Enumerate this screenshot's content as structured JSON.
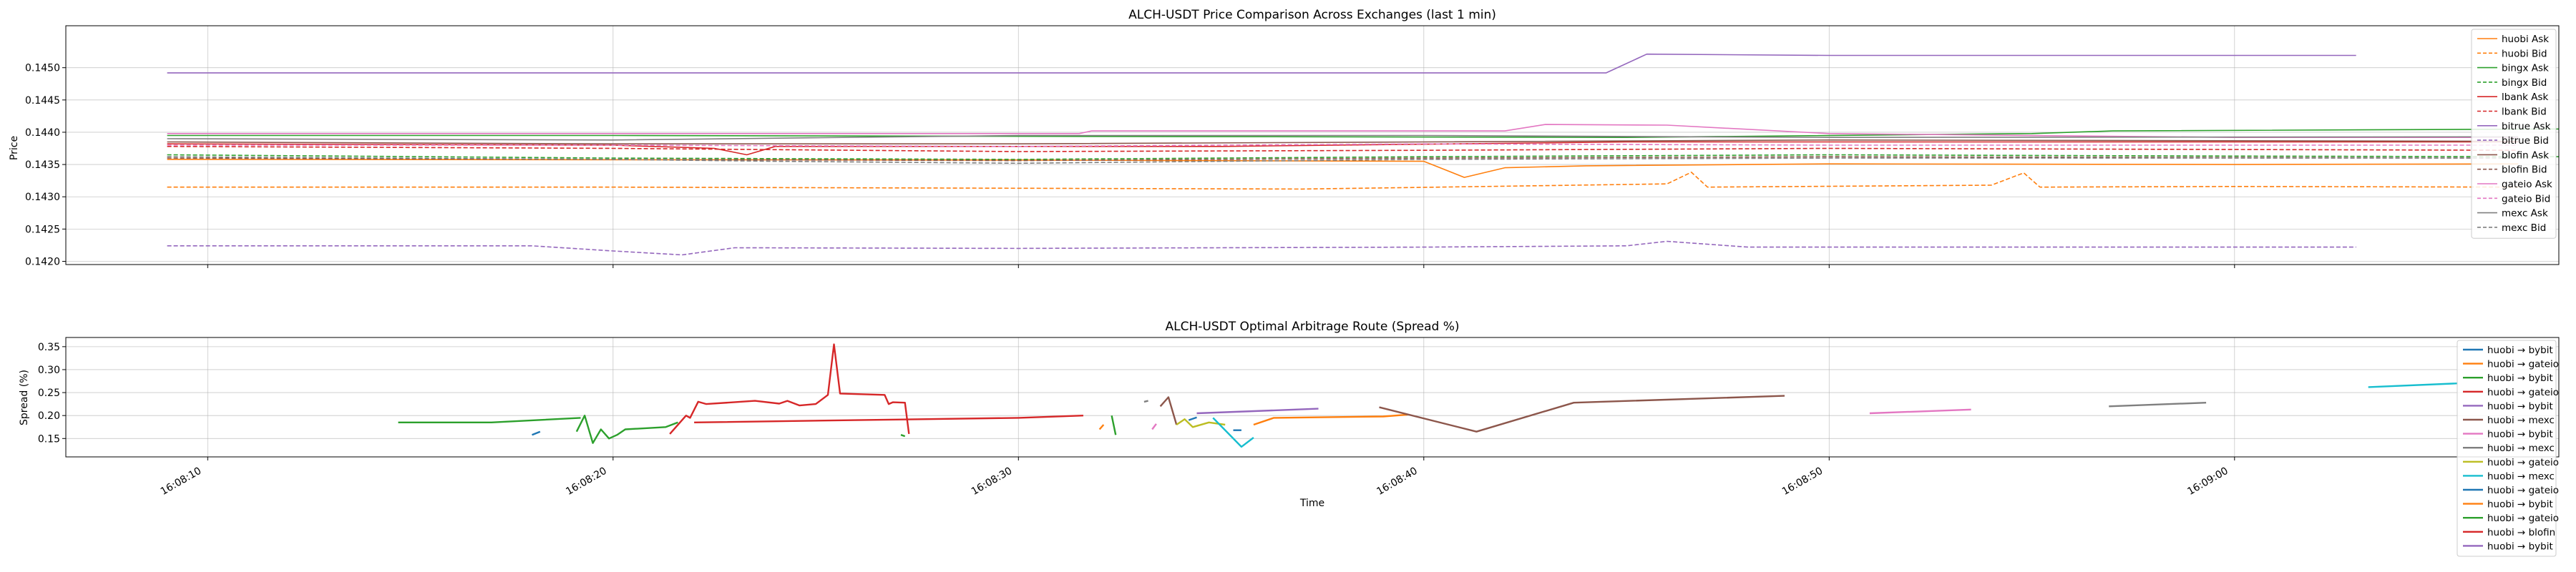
{
  "chart_data": [
    {
      "type": "line",
      "title": "ALCH-USDT Price Comparison Across Exchanges (last 1 min)",
      "xlabel": "",
      "ylabel": "Price",
      "ylim": [
        0.14195,
        0.14565
      ],
      "yticks": [
        "0.1420",
        "0.1425",
        "0.1430",
        "0.1435",
        "0.1440",
        "0.1445",
        "0.1450"
      ],
      "yticks_values": [
        0.142,
        0.1425,
        0.143,
        0.1435,
        0.144,
        0.1445,
        0.145
      ],
      "xlim_seconds": [
        6.5,
        68
      ],
      "grid": true,
      "legend_position": "right",
      "series": [
        {
          "name": "huobi Ask",
          "color": "#ff7f0e",
          "dash": false,
          "points": [
            [
              9,
              0.14358
            ],
            [
              30,
              0.14357
            ],
            [
              40,
              0.14355
            ],
            [
              41,
              0.1433
            ],
            [
              42,
              0.14345
            ],
            [
              44,
              0.14348
            ],
            [
              50,
              0.14351
            ],
            [
              60,
              0.1435
            ],
            [
              67,
              0.14351
            ]
          ]
        },
        {
          "name": "huobi Bid",
          "color": "#ff7f0e",
          "dash": true,
          "points": [
            [
              9,
              0.14315
            ],
            [
              20,
              0.14315
            ],
            [
              37,
              0.14312
            ],
            [
              46,
              0.1432
            ],
            [
              46.6,
              0.14338
            ],
            [
              47,
              0.14315
            ],
            [
              54,
              0.14318
            ],
            [
              54.8,
              0.14337
            ],
            [
              55.2,
              0.14315
            ],
            [
              60,
              0.14316
            ],
            [
              67,
              0.14315
            ]
          ]
        },
        {
          "name": "bingx Ask",
          "color": "#2ca02c",
          "dash": false,
          "points": [
            [
              9,
              0.14395
            ],
            [
              20,
              0.14395
            ],
            [
              45,
              0.14392
            ],
            [
              55,
              0.14398
            ],
            [
              57,
              0.14402
            ],
            [
              68,
              0.14405
            ]
          ]
        },
        {
          "name": "bingx Bid",
          "color": "#2ca02c",
          "dash": true,
          "points": [
            [
              9,
              0.14365
            ],
            [
              20,
              0.1436
            ],
            [
              30,
              0.14358
            ],
            [
              40,
              0.14362
            ],
            [
              50,
              0.14365
            ],
            [
              60,
              0.14363
            ],
            [
              68,
              0.14362
            ]
          ]
        },
        {
          "name": "lbank Ask",
          "color": "#d62728",
          "dash": false,
          "points": [
            [
              9,
              0.14382
            ],
            [
              20,
              0.1438
            ],
            [
              22.5,
              0.14375
            ],
            [
              23.3,
              0.14365
            ],
            [
              24,
              0.14378
            ],
            [
              35,
              0.14378
            ],
            [
              45,
              0.14385
            ],
            [
              60,
              0.14385
            ],
            [
              67,
              0.14385
            ]
          ]
        },
        {
          "name": "lbank Bid",
          "color": "#d62728",
          "dash": true,
          "points": [
            [
              9,
              0.14378
            ],
            [
              20,
              0.14375
            ],
            [
              30,
              0.1437
            ],
            [
              40,
              0.14372
            ],
            [
              50,
              0.14375
            ],
            [
              67,
              0.14372
            ]
          ]
        },
        {
          "name": "bitrue Ask",
          "color": "#9467bd",
          "dash": false,
          "points": [
            [
              9,
              0.14492
            ],
            [
              29,
              0.14492
            ],
            [
              42,
              0.14492
            ],
            [
              44.5,
              0.14492
            ],
            [
              45.5,
              0.14521
            ],
            [
              50,
              0.14519
            ],
            [
              63,
              0.14519
            ]
          ]
        },
        {
          "name": "bitrue Bid",
          "color": "#9467bd",
          "dash": true,
          "points": [
            [
              9,
              0.14224
            ],
            [
              18,
              0.14224
            ],
            [
              20,
              0.14216
            ],
            [
              21.7,
              0.1421
            ],
            [
              23,
              0.14221
            ],
            [
              30,
              0.1422
            ],
            [
              40,
              0.14222
            ],
            [
              45,
              0.14224
            ],
            [
              46,
              0.14231
            ],
            [
              48,
              0.14222
            ],
            [
              63,
              0.14222
            ]
          ]
        },
        {
          "name": "blofin Ask",
          "color": "#8c564b",
          "dash": false,
          "points": [
            [
              9,
              0.14385
            ],
            [
              20,
              0.14382
            ],
            [
              30,
              0.14382
            ],
            [
              40,
              0.14385
            ],
            [
              50,
              0.14388
            ],
            [
              67,
              0.14386
            ]
          ]
        },
        {
          "name": "blofin Bid",
          "color": "#8c564b",
          "dash": true,
          "points": [
            [
              9,
              0.1436
            ],
            [
              20,
              0.14358
            ],
            [
              30,
              0.14356
            ],
            [
              40,
              0.1436
            ],
            [
              50,
              0.14362
            ],
            [
              67,
              0.1436
            ]
          ]
        },
        {
          "name": "gateio Ask",
          "color": "#e377c2",
          "dash": false,
          "points": [
            [
              9,
              0.14398
            ],
            [
              20,
              0.14398
            ],
            [
              31.5,
              0.14398
            ],
            [
              31.8,
              0.14402
            ],
            [
              38,
              0.14402
            ],
            [
              42,
              0.14402
            ],
            [
              43,
              0.14412
            ],
            [
              46,
              0.14411
            ],
            [
              50,
              0.14398
            ],
            [
              60,
              0.14392
            ],
            [
              67,
              0.14392
            ]
          ]
        },
        {
          "name": "gateio Bid",
          "color": "#e377c2",
          "dash": true,
          "points": [
            [
              9,
              0.1438
            ],
            [
              20,
              0.1438
            ],
            [
              30,
              0.14378
            ],
            [
              40,
              0.14382
            ],
            [
              50,
              0.1438
            ],
            [
              67,
              0.1438
            ]
          ]
        },
        {
          "name": "mexc Ask",
          "color": "#7f7f7f",
          "dash": false,
          "points": [
            [
              9,
              0.1439
            ],
            [
              20,
              0.14388
            ],
            [
              30,
              0.14395
            ],
            [
              33,
              0.14395
            ],
            [
              40,
              0.14395
            ],
            [
              50,
              0.14392
            ],
            [
              67,
              0.14393
            ]
          ]
        },
        {
          "name": "mexc Bid",
          "color": "#7f7f7f",
          "dash": true,
          "points": [
            [
              9,
              0.14362
            ],
            [
              20,
              0.14358
            ],
            [
              24,
              0.14355
            ],
            [
              30,
              0.14352
            ],
            [
              40,
              0.14358
            ],
            [
              50,
              0.1436
            ],
            [
              67,
              0.1436
            ]
          ]
        }
      ]
    },
    {
      "type": "line",
      "title": "ALCH-USDT Optimal Arbitrage Route (Spread %)",
      "xlabel": "Time",
      "ylabel": "Spread (%)",
      "ylim": [
        0.11,
        0.37
      ],
      "yticks": [
        "0.15",
        "0.20",
        "0.25",
        "0.30",
        "0.35"
      ],
      "yticks_values": [
        0.15,
        0.2,
        0.25,
        0.3,
        0.35
      ],
      "xticks": [
        "16:08:10",
        "16:08:20",
        "16:08:30",
        "16:08:40",
        "16:08:50",
        "16:09:00"
      ],
      "xticks_seconds": [
        10,
        20,
        30,
        40,
        50,
        60
      ],
      "grid": true,
      "legend_position": "right",
      "legend": [
        {
          "name": "huobi → bybit",
          "color": "#1f77b4"
        },
        {
          "name": "huobi → gateio",
          "color": "#ff7f0e"
        },
        {
          "name": "huobi → bybit",
          "color": "#2ca02c"
        },
        {
          "name": "huobi → gateio",
          "color": "#d62728"
        },
        {
          "name": "huobi → bybit",
          "color": "#9467bd"
        },
        {
          "name": "huobi → mexc",
          "color": "#8c564b"
        },
        {
          "name": "huobi → bybit",
          "color": "#e377c2"
        },
        {
          "name": "huobi → mexc",
          "color": "#7f7f7f"
        },
        {
          "name": "huobi → gateio",
          "color": "#bcbd22"
        },
        {
          "name": "huobi → mexc",
          "color": "#17becf"
        },
        {
          "name": "huobi → gateio",
          "color": "#1f77b4"
        },
        {
          "name": "huobi → bybit",
          "color": "#ff7f0e"
        },
        {
          "name": "huobi → gateio",
          "color": "#2ca02c"
        },
        {
          "name": "huobi → blofin",
          "color": "#d62728"
        },
        {
          "name": "huobi → bybit",
          "color": "#9467bd"
        }
      ],
      "segments": [
        {
          "color": "#2ca02c",
          "points": [
            [
              14.7,
              0.185
            ],
            [
              17,
              0.185
            ],
            [
              19.2,
              0.195
            ]
          ]
        },
        {
          "color": "#1f77b4",
          "points": [
            [
              18,
              0.158
            ],
            [
              18.2,
              0.165
            ]
          ]
        },
        {
          "color": "#2ca02c",
          "points": [
            [
              19.1,
              0.165
            ],
            [
              19.3,
              0.2
            ],
            [
              19.5,
              0.14
            ],
            [
              19.7,
              0.17
            ],
            [
              19.9,
              0.15
            ],
            [
              20.1,
              0.158
            ],
            [
              20.3,
              0.17
            ],
            [
              21.3,
              0.175
            ],
            [
              21.6,
              0.185
            ]
          ]
        },
        {
          "color": "#d62728",
          "points": [
            [
              21.4,
              0.16
            ],
            [
              21.8,
              0.2
            ],
            [
              21.9,
              0.195
            ],
            [
              22.1,
              0.23
            ],
            [
              22.3,
              0.225
            ],
            [
              23.5,
              0.232
            ],
            [
              24.1,
              0.226
            ],
            [
              24.3,
              0.232
            ],
            [
              24.6,
              0.222
            ],
            [
              25.0,
              0.225
            ],
            [
              25.3,
              0.245
            ],
            [
              25.45,
              0.355
            ],
            [
              25.6,
              0.248
            ],
            [
              26.7,
              0.245
            ],
            [
              26.8,
              0.225
            ],
            [
              26.9,
              0.229
            ],
            [
              27.2,
              0.228
            ],
            [
              27.3,
              0.16
            ]
          ]
        },
        {
          "color": "#d62728",
          "points": [
            [
              22.0,
              0.185
            ],
            [
              26,
              0.19
            ],
            [
              30,
              0.195
            ],
            [
              31.6,
              0.2
            ]
          ]
        },
        {
          "color": "#2ca02c",
          "points": [
            [
              27.1,
              0.158
            ],
            [
              27.2,
              0.155
            ]
          ]
        },
        {
          "color": "#ff7f0e",
          "points": [
            [
              32.0,
              0.17
            ],
            [
              32.1,
              0.18
            ]
          ]
        },
        {
          "color": "#2ca02c",
          "points": [
            [
              32.3,
              0.2
            ],
            [
              32.4,
              0.158
            ]
          ]
        },
        {
          "color": "#7f7f7f",
          "points": [
            [
              33.1,
              0.23
            ],
            [
              33.2,
              0.232
            ]
          ]
        },
        {
          "color": "#e377c2",
          "points": [
            [
              33.3,
              0.17
            ],
            [
              33.4,
              0.182
            ]
          ]
        },
        {
          "color": "#8c564b",
          "points": [
            [
              33.5,
              0.22
            ],
            [
              33.7,
              0.24
            ],
            [
              33.9,
              0.18
            ]
          ]
        },
        {
          "color": "#bcbd22",
          "points": [
            [
              33.9,
              0.18
            ],
            [
              34.1,
              0.192
            ],
            [
              34.3,
              0.175
            ],
            [
              34.7,
              0.185
            ],
            [
              35.1,
              0.18
            ]
          ]
        },
        {
          "color": "#1f77b4",
          "points": [
            [
              34.2,
              0.19
            ],
            [
              34.4,
              0.196
            ]
          ]
        },
        {
          "color": "#17becf",
          "points": [
            [
              34.8,
              0.195
            ],
            [
              35.5,
              0.132
            ],
            [
              35.8,
              0.152
            ]
          ]
        },
        {
          "color": "#9467bd",
          "points": [
            [
              34.4,
              0.205
            ],
            [
              37.4,
              0.215
            ]
          ]
        },
        {
          "color": "#1f77b4",
          "points": [
            [
              35.3,
              0.168
            ],
            [
              35.5,
              0.168
            ]
          ]
        },
        {
          "color": "#ff7f0e",
          "points": [
            [
              35.8,
              0.18
            ],
            [
              36.3,
              0.195
            ],
            [
              39.0,
              0.198
            ],
            [
              39.6,
              0.202
            ]
          ]
        },
        {
          "color": "#8c564b",
          "points": [
            [
              38.9,
              0.218
            ],
            [
              41.3,
              0.165
            ],
            [
              43.7,
              0.228
            ],
            [
              48.9,
              0.243
            ]
          ]
        },
        {
          "color": "#e377c2",
          "points": [
            [
              51.0,
              0.205
            ],
            [
              53.5,
              0.213
            ]
          ]
        },
        {
          "color": "#7f7f7f",
          "points": [
            [
              56.9,
              0.22
            ],
            [
              59.3,
              0.228
            ]
          ]
        },
        {
          "color": "#17becf",
          "points": [
            [
              63.3,
              0.262
            ],
            [
              65.5,
              0.27
            ]
          ]
        }
      ]
    }
  ]
}
